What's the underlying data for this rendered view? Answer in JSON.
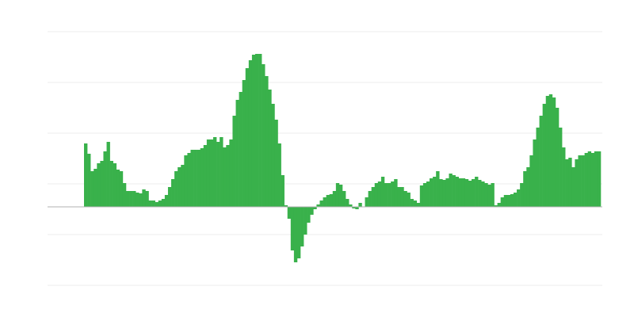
{
  "chart_data": {
    "type": "bar",
    "title": "",
    "xlabel": "",
    "ylabel": "",
    "ylim": [
      -99,
      221
    ],
    "gridlines": [
      221,
      157,
      93,
      29,
      -35,
      -99
    ],
    "grid": true,
    "legend": "none",
    "colors": {
      "bar": "#39b14b",
      "grid": "#eeeeee",
      "zero_line": "#b0b0b0"
    },
    "values": [
      80,
      67,
      45,
      48,
      55,
      58,
      70,
      82,
      58,
      55,
      47,
      45,
      30,
      20,
      20,
      20,
      18,
      17,
      22,
      20,
      8,
      8,
      6,
      8,
      10,
      15,
      25,
      35,
      45,
      50,
      53,
      65,
      68,
      72,
      72,
      72,
      74,
      78,
      85,
      85,
      88,
      82,
      88,
      75,
      78,
      85,
      115,
      135,
      145,
      160,
      175,
      185,
      192,
      193,
      193,
      180,
      165,
      148,
      130,
      110,
      80,
      40,
      2,
      -15,
      -55,
      -70,
      -65,
      -50,
      -35,
      -20,
      -10,
      -3,
      3,
      8,
      12,
      15,
      16,
      20,
      30,
      28,
      20,
      10,
      3,
      -2,
      -3,
      5,
      0,
      12,
      20,
      25,
      30,
      32,
      38,
      30,
      30,
      32,
      35,
      25,
      25,
      20,
      18,
      10,
      8,
      5,
      27,
      30,
      32,
      36,
      38,
      45,
      35,
      34,
      36,
      42,
      40,
      38,
      36,
      36,
      35,
      33,
      35,
      38,
      34,
      32,
      30,
      28,
      30,
      2,
      5,
      12,
      15,
      15,
      16,
      18,
      22,
      30,
      45,
      50,
      65,
      85,
      100,
      115,
      130,
      140,
      142,
      138,
      125,
      100,
      75,
      60,
      62,
      50,
      60,
      65,
      65,
      68,
      70,
      68,
      70,
      70
    ]
  }
}
